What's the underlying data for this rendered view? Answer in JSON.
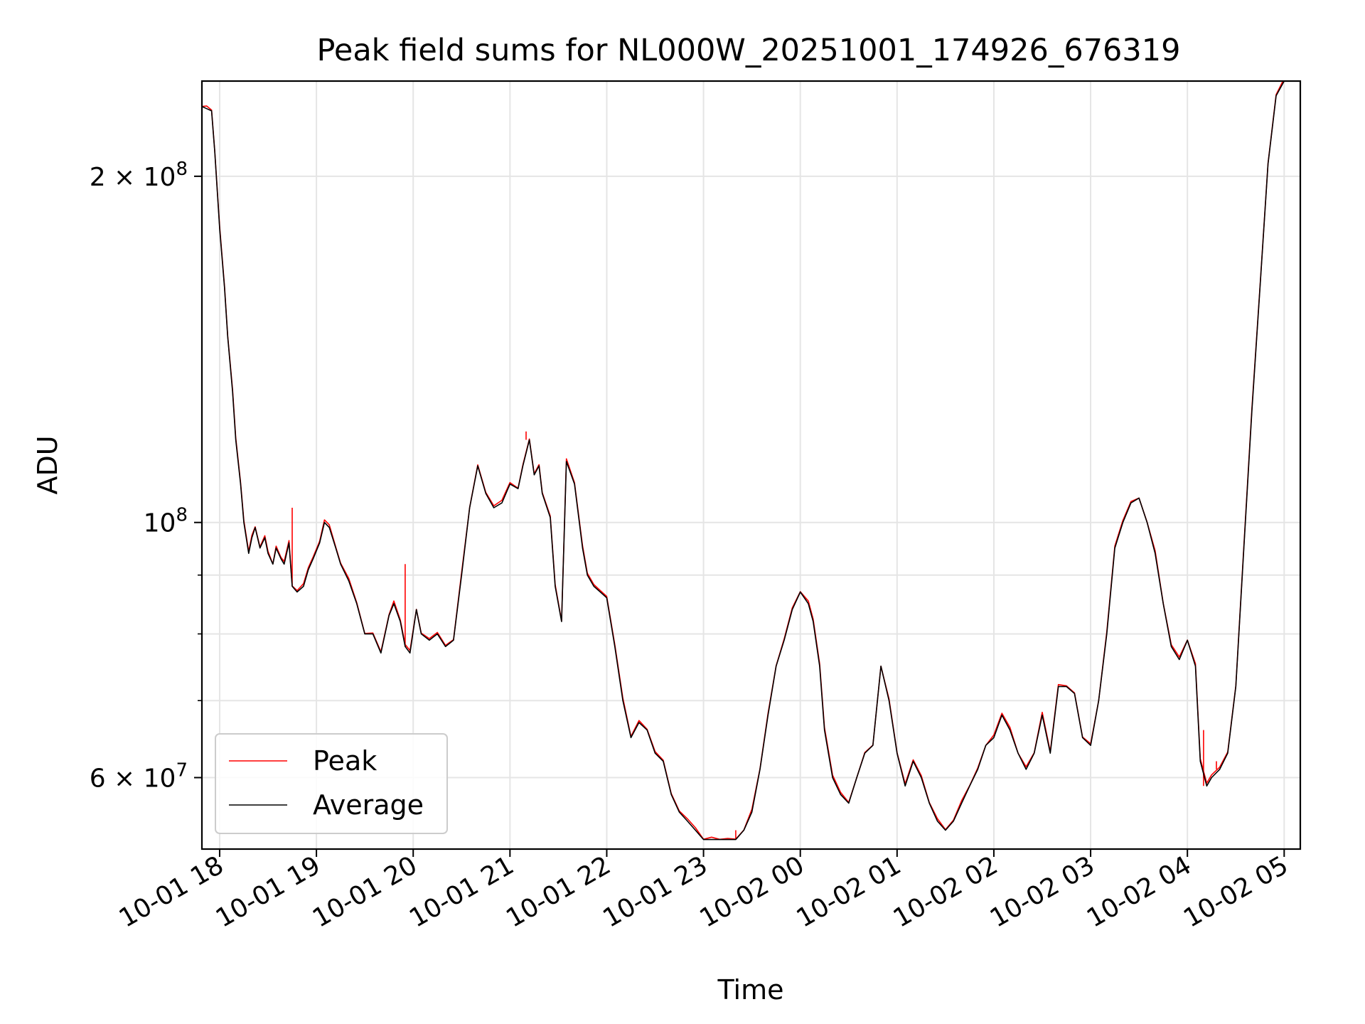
{
  "chart_data": {
    "type": "line",
    "title": "Peak field sums for NL000W_20251001_174926_676319",
    "xlabel": "Time",
    "ylabel": "ADU",
    "yscale": "log",
    "xlim": [
      "2025-10-01 17:49",
      "2025-10-02 05:10"
    ],
    "ylim": [
      52000000,
      242000000
    ],
    "grid": true,
    "legend": "lower-left",
    "x_ticks": [
      "10-01 18",
      "10-01 19",
      "10-01 20",
      "10-01 21",
      "10-01 22",
      "10-01 23",
      "10-02 00",
      "10-02 01",
      "10-02 02",
      "10-02 03",
      "10-02 04",
      "10-02 05"
    ],
    "y_major_ticks": [
      {
        "value": 60000000,
        "base": "6 × 10",
        "exp": "7"
      },
      {
        "value": 100000000,
        "base": "10",
        "exp": "8"
      },
      {
        "value": 200000000,
        "base": "2 × 10",
        "exp": "8"
      }
    ],
    "y_minor_ticks": [
      70000000,
      80000000,
      90000000
    ],
    "series": [
      {
        "name": "Peak",
        "color": "#ff0000",
        "spikes": [
          {
            "x": "2025-10-01 18:45",
            "y": 103000000
          },
          {
            "x": "2025-10-01 19:55",
            "y": 92000000
          },
          {
            "x": "2025-10-01 21:10",
            "y": 120000000
          },
          {
            "x": "2025-10-01 23:20",
            "y": 54000000
          },
          {
            "x": "2025-10-02 04:10",
            "y": 66000000
          },
          {
            "x": "2025-10-02 04:18",
            "y": 62000000
          }
        ]
      },
      {
        "name": "Average",
        "color": "#000000",
        "x": [
          "2025-10-01 17:49",
          "2025-10-01 17:52",
          "2025-10-01 17:55",
          "2025-10-01 17:57",
          "2025-10-01 18:00",
          "2025-10-01 18:03",
          "2025-10-01 18:05",
          "2025-10-01 18:08",
          "2025-10-01 18:10",
          "2025-10-01 18:13",
          "2025-10-01 18:15",
          "2025-10-01 18:18",
          "2025-10-01 18:20",
          "2025-10-01 18:22",
          "2025-10-01 18:25",
          "2025-10-01 18:28",
          "2025-10-01 18:30",
          "2025-10-01 18:33",
          "2025-10-01 18:35",
          "2025-10-01 18:38",
          "2025-10-01 18:40",
          "2025-10-01 18:43",
          "2025-10-01 18:45",
          "2025-10-01 18:48",
          "2025-10-01 18:52",
          "2025-10-01 18:55",
          "2025-10-01 18:58",
          "2025-10-01 19:02",
          "2025-10-01 19:05",
          "2025-10-01 19:08",
          "2025-10-01 19:12",
          "2025-10-01 19:15",
          "2025-10-01 19:20",
          "2025-10-01 19:25",
          "2025-10-01 19:30",
          "2025-10-01 19:35",
          "2025-10-01 19:40",
          "2025-10-01 19:45",
          "2025-10-01 19:48",
          "2025-10-01 19:52",
          "2025-10-01 19:55",
          "2025-10-01 19:58",
          "2025-10-01 20:02",
          "2025-10-01 20:05",
          "2025-10-01 20:10",
          "2025-10-01 20:15",
          "2025-10-01 20:20",
          "2025-10-01 20:25",
          "2025-10-01 20:30",
          "2025-10-01 20:35",
          "2025-10-01 20:40",
          "2025-10-01 20:45",
          "2025-10-01 20:50",
          "2025-10-01 20:55",
          "2025-10-01 21:00",
          "2025-10-01 21:05",
          "2025-10-01 21:08",
          "2025-10-01 21:12",
          "2025-10-01 21:15",
          "2025-10-01 21:18",
          "2025-10-01 21:20",
          "2025-10-01 21:25",
          "2025-10-01 21:28",
          "2025-10-01 21:32",
          "2025-10-01 21:35",
          "2025-10-01 21:40",
          "2025-10-01 21:45",
          "2025-10-01 21:48",
          "2025-10-01 21:52",
          "2025-10-01 21:56",
          "2025-10-01 22:00",
          "2025-10-01 22:05",
          "2025-10-01 22:10",
          "2025-10-01 22:15",
          "2025-10-01 22:20",
          "2025-10-01 22:25",
          "2025-10-01 22:30",
          "2025-10-01 22:35",
          "2025-10-01 22:40",
          "2025-10-01 22:45",
          "2025-10-01 22:50",
          "2025-10-01 22:55",
          "2025-10-01 23:00",
          "2025-10-01 23:05",
          "2025-10-01 23:10",
          "2025-10-01 23:15",
          "2025-10-01 23:20",
          "2025-10-01 23:25",
          "2025-10-01 23:30",
          "2025-10-01 23:35",
          "2025-10-01 23:40",
          "2025-10-01 23:45",
          "2025-10-01 23:50",
          "2025-10-01 23:55",
          "2025-10-02 00:00",
          "2025-10-02 00:05",
          "2025-10-02 00:08",
          "2025-10-02 00:12",
          "2025-10-02 00:15",
          "2025-10-02 00:20",
          "2025-10-02 00:25",
          "2025-10-02 00:30",
          "2025-10-02 00:35",
          "2025-10-02 00:40",
          "2025-10-02 00:45",
          "2025-10-02 00:50",
          "2025-10-02 00:55",
          "2025-10-02 01:00",
          "2025-10-02 01:05",
          "2025-10-02 01:10",
          "2025-10-02 01:15",
          "2025-10-02 01:20",
          "2025-10-02 01:25",
          "2025-10-02 01:30",
          "2025-10-02 01:35",
          "2025-10-02 01:40",
          "2025-10-02 01:45",
          "2025-10-02 01:50",
          "2025-10-02 01:55",
          "2025-10-02 02:00",
          "2025-10-02 02:05",
          "2025-10-02 02:10",
          "2025-10-02 02:15",
          "2025-10-02 02:20",
          "2025-10-02 02:25",
          "2025-10-02 02:30",
          "2025-10-02 02:35",
          "2025-10-02 02:40",
          "2025-10-02 02:45",
          "2025-10-02 02:50",
          "2025-10-02 02:55",
          "2025-10-02 03:00",
          "2025-10-02 03:05",
          "2025-10-02 03:10",
          "2025-10-02 03:15",
          "2025-10-02 03:20",
          "2025-10-02 03:25",
          "2025-10-02 03:30",
          "2025-10-02 03:35",
          "2025-10-02 03:40",
          "2025-10-02 03:45",
          "2025-10-02 03:50",
          "2025-10-02 03:55",
          "2025-10-02 04:00",
          "2025-10-02 04:05",
          "2025-10-02 04:08",
          "2025-10-02 04:12",
          "2025-10-02 04:15",
          "2025-10-02 04:20",
          "2025-10-02 04:25",
          "2025-10-02 04:30",
          "2025-10-02 04:35",
          "2025-10-02 04:40",
          "2025-10-02 04:45",
          "2025-10-02 04:50",
          "2025-10-02 04:55",
          "2025-10-02 05:00"
        ],
        "y": [
          230000000,
          229000000,
          228000000,
          210000000,
          180000000,
          160000000,
          145000000,
          130000000,
          118000000,
          108000000,
          100000000,
          94000000,
          97000000,
          99000000,
          95000000,
          97000000,
          94000000,
          92000000,
          95000000,
          93000000,
          92000000,
          96000000,
          88000000,
          87000000,
          88000000,
          91000000,
          93000000,
          96000000,
          100000000,
          99000000,
          95000000,
          92000000,
          89000000,
          85000000,
          80000000,
          80000000,
          77000000,
          83000000,
          85000000,
          82000000,
          78000000,
          77000000,
          84000000,
          80000000,
          79000000,
          80000000,
          78000000,
          79000000,
          90000000,
          103000000,
          112000000,
          106000000,
          103000000,
          104000000,
          108000000,
          107000000,
          112000000,
          118000000,
          110000000,
          112000000,
          106000000,
          101000000,
          88000000,
          82000000,
          113000000,
          108000000,
          95000000,
          90000000,
          88000000,
          87000000,
          86000000,
          78000000,
          70000000,
          65000000,
          67000000,
          66000000,
          63000000,
          62000000,
          58000000,
          56000000,
          55000000,
          54000000,
          53000000,
          53000000,
          53000000,
          53000000,
          53000000,
          54000000,
          56000000,
          61000000,
          68000000,
          75000000,
          79000000,
          84000000,
          87000000,
          85000000,
          82000000,
          75000000,
          66000000,
          60000000,
          58000000,
          57000000,
          60000000,
          63000000,
          64000000,
          75000000,
          70000000,
          63000000,
          59000000,
          62000000,
          60000000,
          57000000,
          55000000,
          54000000,
          55000000,
          57000000,
          59000000,
          61000000,
          64000000,
          65000000,
          68000000,
          66000000,
          63000000,
          61000000,
          63000000,
          68000000,
          63000000,
          72000000,
          72000000,
          71000000,
          65000000,
          64000000,
          70000000,
          80000000,
          95000000,
          100000000,
          104000000,
          105000000,
          100000000,
          94000000,
          85000000,
          78000000,
          76000000,
          79000000,
          75000000,
          62000000,
          59000000,
          60000000,
          61000000,
          63000000,
          72000000,
          95000000,
          125000000,
          160000000,
          205000000,
          235000000,
          242000000
        ]
      }
    ]
  }
}
